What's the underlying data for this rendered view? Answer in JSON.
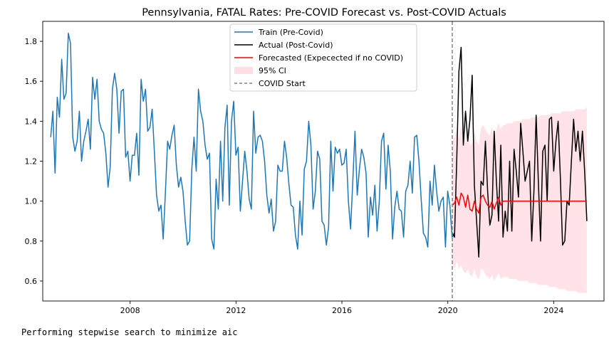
{
  "chart_data": {
    "type": "line",
    "title": "Pennsylvania, FATAL Rates: Pre-COVID Forecast vs. Post-COVID Actuals",
    "xlabel": "",
    "ylabel": "",
    "xlim": [
      2004.7,
      2025.9
    ],
    "ylim": [
      0.5,
      1.9
    ],
    "x_ticks": [
      2008,
      2012,
      2016,
      2020,
      2024
    ],
    "y_ticks": [
      0.6,
      0.8,
      1.0,
      1.2,
      1.4,
      1.6,
      1.8
    ],
    "grid": false,
    "legend_position": "upper-center",
    "covid_start": 2020.17,
    "colors": {
      "train": "#1f77b4",
      "actual": "#000000",
      "forecast": "#ff0000",
      "ci": "#ffc0cb",
      "covid_line": "#808080"
    },
    "series": [
      {
        "name": "Train (Pre-Covid)",
        "x_start": 2005.0,
        "x_step": 0.0833,
        "values": [
          1.32,
          1.45,
          1.14,
          1.52,
          1.42,
          1.71,
          1.51,
          1.54,
          1.84,
          1.79,
          1.32,
          1.25,
          1.3,
          1.45,
          1.2,
          1.3,
          1.35,
          1.41,
          1.26,
          1.62,
          1.51,
          1.61,
          1.4,
          1.36,
          1.34,
          1.24,
          1.07,
          1.17,
          1.56,
          1.64,
          1.56,
          1.34,
          1.55,
          1.56,
          1.22,
          1.25,
          1.1,
          1.23,
          1.23,
          1.34,
          1.13,
          1.61,
          1.5,
          1.56,
          1.35,
          1.37,
          1.46,
          1.25,
          1.03,
          0.95,
          0.98,
          0.81,
          1.04,
          1.3,
          1.26,
          1.33,
          1.38,
          1.18,
          1.07,
          1.12,
          1.05,
          0.9,
          0.78,
          0.8,
          1.16,
          1.32,
          1.15,
          1.56,
          1.45,
          1.4,
          1.28,
          1.21,
          1.24,
          0.81,
          0.76,
          1.11,
          0.96,
          1.3,
          1.0,
          1.37,
          1.48,
          0.98,
          1.4,
          1.5,
          1.23,
          1.27,
          0.95,
          1.1,
          1.25,
          1.15,
          1.01,
          0.96,
          1.45,
          1.24,
          1.32,
          1.33,
          1.3,
          1.2,
          1.03,
          0.94,
          1.01,
          0.85,
          0.9,
          1.18,
          1.15,
          1.15,
          1.3,
          1.22,
          1.09,
          0.98,
          0.97,
          0.83,
          0.76,
          1.0,
          0.83,
          1.16,
          1.2,
          1.4,
          1.28,
          0.96,
          1.05,
          1.25,
          1.21,
          0.9,
          0.88,
          0.78,
          0.87,
          1.3,
          1.05,
          1.27,
          1.24,
          1.26,
          1.18,
          1.19,
          1.26,
          1.0,
          0.86,
          1.1,
          1.35,
          1.03,
          1.16,
          1.26,
          1.22,
          1.14,
          0.82,
          1.02,
          0.93,
          1.08,
          0.85,
          1.0,
          1.3,
          1.34,
          1.06,
          1.28,
          1.15,
          0.81,
          0.97,
          1.05,
          0.96,
          0.95,
          0.82,
          1.05,
          1.08,
          1.2,
          1.04,
          1.32,
          1.33,
          1.2,
          1.01,
          0.84,
          0.82,
          0.77,
          1.1,
          0.98,
          1.18,
          1.05,
          0.95,
          1.0,
          1.02,
          0.77,
          1.05,
          0.98,
          0.82,
          0.84
        ]
      },
      {
        "name": "Actual (Post-Covid)",
        "x_start": 2020.17,
        "x_step": 0.0833,
        "values": [
          0.84,
          0.82,
          1.2,
          1.65,
          1.77,
          1.28,
          1.45,
          1.3,
          1.41,
          1.63,
          1.08,
          0.9,
          0.72,
          1.1,
          1.08,
          1.3,
          1.05,
          0.88,
          0.93,
          1.35,
          1.1,
          0.9,
          1.28,
          0.82,
          0.95,
          0.85,
          1.2,
          0.85,
          1.26,
          1.15,
          1.02,
          1.39,
          1.25,
          1.1,
          1.15,
          1.2,
          0.8,
          1.05,
          1.43,
          1.1,
          0.8,
          1.25,
          1.28,
          1.0,
          1.41,
          1.42,
          1.15,
          1.3,
          1.4,
          1.12,
          0.78,
          0.8,
          1.0,
          0.98,
          1.2,
          1.41,
          1.25,
          1.35,
          1.2,
          1.35,
          1.15,
          0.9
        ]
      },
      {
        "name": "Forecasted (Expecected if no COVID)",
        "x_start": 2020.17,
        "x_step": 0.0833,
        "values": [
          0.98,
          0.99,
          1.02,
          0.98,
          1.04,
          1.02,
          0.97,
          1.03,
          0.96,
          0.95,
          1.0,
          0.96,
          0.94,
          1.02,
          1.03,
          1.0,
          0.98,
          0.97,
          1.0,
          0.96,
          0.99,
          1.02,
          0.98,
          1.0,
          1.0,
          1.0,
          1.0,
          1.0,
          1.0,
          1.0,
          1.0,
          1.0,
          1.0,
          1.0,
          1.0,
          1.0,
          1.0,
          1.0,
          1.0,
          1.0,
          1.0,
          1.0,
          1.0,
          1.0,
          1.0,
          1.0,
          1.0,
          1.0,
          1.0,
          1.0,
          1.0,
          1.0,
          1.0,
          1.0,
          1.0,
          1.0,
          1.0,
          1.0,
          1.0,
          1.0,
          1.0,
          1.0
        ]
      }
    ],
    "ci": {
      "name": "95% CI",
      "x_start": 2020.17,
      "x_step": 0.0833,
      "lower": [
        0.68,
        0.66,
        0.7,
        0.66,
        0.68,
        0.65,
        0.64,
        0.66,
        0.63,
        0.62,
        0.66,
        0.62,
        0.61,
        0.66,
        0.66,
        0.63,
        0.62,
        0.61,
        0.63,
        0.6,
        0.62,
        0.64,
        0.61,
        0.62,
        0.62,
        0.62,
        0.61,
        0.61,
        0.61,
        0.61,
        0.6,
        0.6,
        0.6,
        0.6,
        0.6,
        0.59,
        0.59,
        0.59,
        0.59,
        0.58,
        0.58,
        0.58,
        0.58,
        0.58,
        0.57,
        0.57,
        0.57,
        0.57,
        0.56,
        0.56,
        0.56,
        0.56,
        0.55,
        0.55,
        0.55,
        0.55,
        0.55,
        0.54,
        0.54,
        0.54,
        0.54,
        0.54
      ],
      "upper": [
        1.3,
        1.32,
        1.36,
        1.31,
        1.38,
        1.35,
        1.29,
        1.37,
        1.28,
        1.29,
        1.35,
        1.3,
        1.28,
        1.37,
        1.38,
        1.36,
        1.34,
        1.33,
        1.37,
        1.32,
        1.36,
        1.39,
        1.36,
        1.38,
        1.38,
        1.39,
        1.39,
        1.39,
        1.4,
        1.4,
        1.4,
        1.4,
        1.41,
        1.41,
        1.41,
        1.41,
        1.42,
        1.42,
        1.42,
        1.42,
        1.43,
        1.43,
        1.43,
        1.43,
        1.43,
        1.44,
        1.44,
        1.44,
        1.44,
        1.44,
        1.45,
        1.45,
        1.45,
        1.45,
        1.45,
        1.45,
        1.46,
        1.46,
        1.46,
        1.46,
        1.46,
        1.47
      ]
    },
    "covid_label": "COVID Start"
  },
  "console": {
    "text": "Performing stepwise search to minimize aic"
  }
}
